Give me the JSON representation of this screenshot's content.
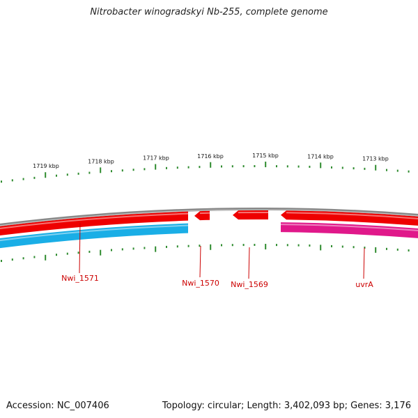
{
  "title": "Nitrobacter winogradskyi Nb-255, complete genome",
  "footer": {
    "accession": "Accession: NC_007406",
    "topology": "Topology: circular; Length: 3,402,093 bp; Genes: 3,176"
  },
  "colors": {
    "backbone": "#888888",
    "forward_gene": "#ee0000",
    "reverse_gene_blue": "#1aaee6",
    "reverse_gene_pink": "#e0188a",
    "tick": "#2e8b2e",
    "label": "#cc0000"
  },
  "chart_data": {
    "type": "genome-map",
    "kbp_ticks": [
      "1719 kbp",
      "1718 kbp",
      "1717 kbp",
      "1716 kbp",
      "1715 kbp",
      "1714 kbp",
      "1713 kbp"
    ],
    "genes": [
      {
        "name": "Nwi_1571",
        "strand": "reverse",
        "color": "blue"
      },
      {
        "name": "Nwi_1570",
        "strand": "forward",
        "color": "red"
      },
      {
        "name": "Nwi_1569",
        "strand": "forward",
        "color": "red"
      },
      {
        "name": "uvrA",
        "strand": "forward",
        "color": "red"
      }
    ]
  }
}
